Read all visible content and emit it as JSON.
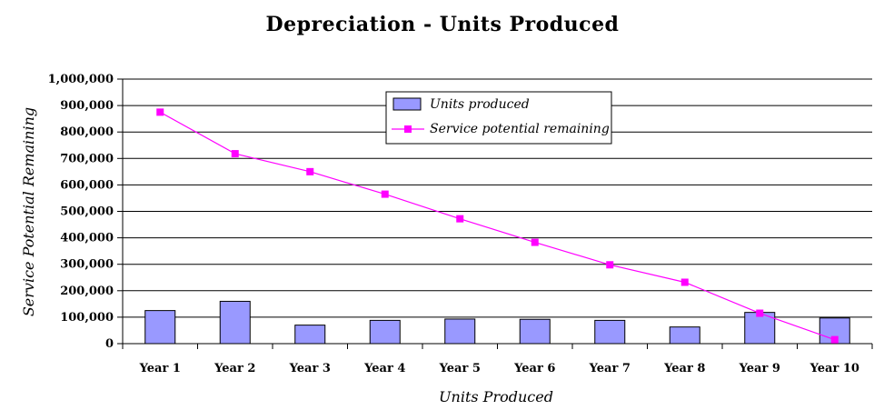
{
  "chart_data": {
    "type": "bar",
    "title": "Depreciation - Units Produced",
    "xlabel": "Units Produced",
    "ylabel": "Service Potential Remaining",
    "categories": [
      "Year 1",
      "Year 2",
      "Year 3",
      "Year 4",
      "Year 5",
      "Year 6",
      "Year 7",
      "Year 8",
      "Year 9",
      "Year 10"
    ],
    "ylim": [
      0,
      1000000
    ],
    "yticks": [
      "0",
      "100,000",
      "200,000",
      "300,000",
      "400,000",
      "500,000",
      "600,000",
      "700,000",
      "800,000",
      "900,000",
      "1,000,000"
    ],
    "grid": true,
    "legend_position": "top-center",
    "series": [
      {
        "name": "Units produced",
        "type": "bar",
        "color": "#9999ff",
        "values": [
          125000,
          160000,
          70000,
          88000,
          93000,
          92000,
          88000,
          63000,
          118000,
          97000
        ]
      },
      {
        "name": "Service potential remaining",
        "type": "line",
        "color": "#ff00ff",
        "values": [
          875000,
          718000,
          650000,
          565000,
          472000,
          383000,
          298000,
          232000,
          115000,
          15000
        ]
      }
    ]
  }
}
